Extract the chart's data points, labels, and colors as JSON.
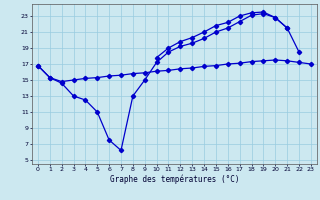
{
  "title": "Graphe des températures (°C)",
  "background_color": "#cce8f0",
  "grid_color": "#99cce0",
  "line_color": "#0000cc",
  "xlim": [
    -0.5,
    23.5
  ],
  "ylim": [
    4.5,
    24.5
  ],
  "xticks": [
    0,
    1,
    2,
    3,
    4,
    5,
    6,
    7,
    8,
    9,
    10,
    11,
    12,
    13,
    14,
    15,
    16,
    17,
    18,
    19,
    20,
    21,
    22,
    23
  ],
  "yticks": [
    5,
    7,
    9,
    11,
    13,
    15,
    17,
    19,
    21,
    23
  ],
  "line1_x": [
    0,
    1,
    2,
    3,
    4,
    5,
    6,
    7,
    8,
    9,
    10,
    11,
    12,
    13,
    14,
    15,
    16,
    17,
    18,
    19,
    20,
    21,
    22,
    23
  ],
  "line1_y": [
    16.8,
    15.3,
    14.8,
    15.0,
    15.2,
    15.3,
    15.5,
    15.6,
    15.8,
    15.9,
    16.1,
    16.2,
    16.4,
    16.5,
    16.7,
    16.8,
    17.0,
    17.1,
    17.3,
    17.4,
    17.5,
    17.4,
    17.2,
    17.0
  ],
  "line2_x": [
    0,
    1,
    2,
    3,
    4,
    5,
    6,
    7,
    8,
    9,
    10,
    11,
    12,
    13,
    14,
    15,
    16,
    17,
    18,
    19,
    20,
    21,
    22
  ],
  "line2_y": [
    16.8,
    15.3,
    14.6,
    13.0,
    12.5,
    11.0,
    7.5,
    6.2,
    13.0,
    15.0,
    17.2,
    18.5,
    19.2,
    19.6,
    20.2,
    21.0,
    21.5,
    22.3,
    23.1,
    23.3,
    22.8,
    21.5,
    18.5
  ],
  "line3_x": [
    10,
    11,
    12,
    13,
    14,
    15,
    16,
    17,
    18,
    19,
    20,
    21
  ],
  "line3_y": [
    17.8,
    19.0,
    19.8,
    20.3,
    21.0,
    21.8,
    22.2,
    23.0,
    23.4,
    23.5,
    22.8,
    21.5
  ]
}
